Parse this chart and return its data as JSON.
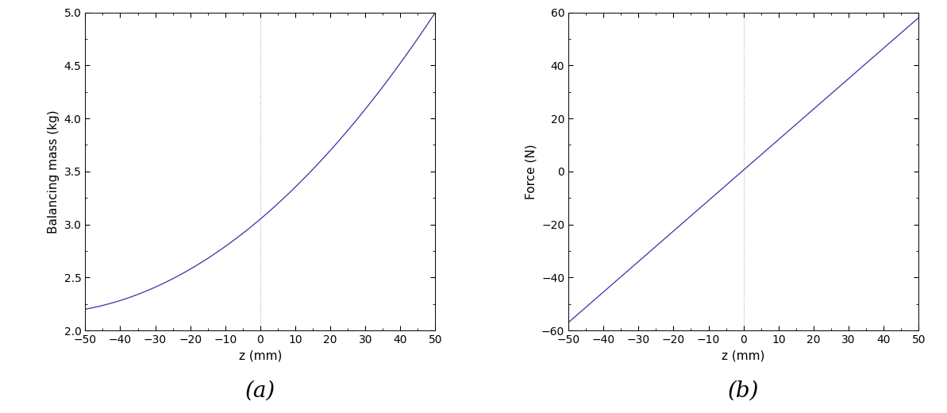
{
  "xlim": [
    -50,
    50
  ],
  "xticks": [
    -50,
    -40,
    -30,
    -20,
    -10,
    0,
    10,
    20,
    30,
    40,
    50
  ],
  "xlabel": "z (mm)",
  "plot_a": {
    "ylim": [
      2,
      5
    ],
    "yticks": [
      2,
      2.5,
      3,
      3.5,
      4,
      4.5,
      5
    ],
    "ylabel": "Balancing mass (kg)",
    "label": "(a)",
    "line_color": "#3333aa",
    "vline_color": "#aaaaaa",
    "vline_style": "dotted",
    "mc_a": 3.05,
    "mc_b": 0.019,
    "mc_c": 0.00038
  },
  "plot_b": {
    "ylim": [
      -60,
      60
    ],
    "yticks": [
      -60,
      -40,
      -20,
      0,
      20,
      40,
      60
    ],
    "ylabel": "Force (N)",
    "label": "(b)",
    "line_color": "#3333aa",
    "vline_color": "#aaaaaa",
    "vline_style": "dotted",
    "slope": 1.14,
    "intercept": -3.0,
    "quad": 0.0
  },
  "tick_fontsize": 10,
  "axis_label_fontsize": 11,
  "subtitle_fontsize": 20,
  "line_width": 0.9,
  "fig_width": 11.93,
  "fig_height": 5.2,
  "dpi": 100
}
